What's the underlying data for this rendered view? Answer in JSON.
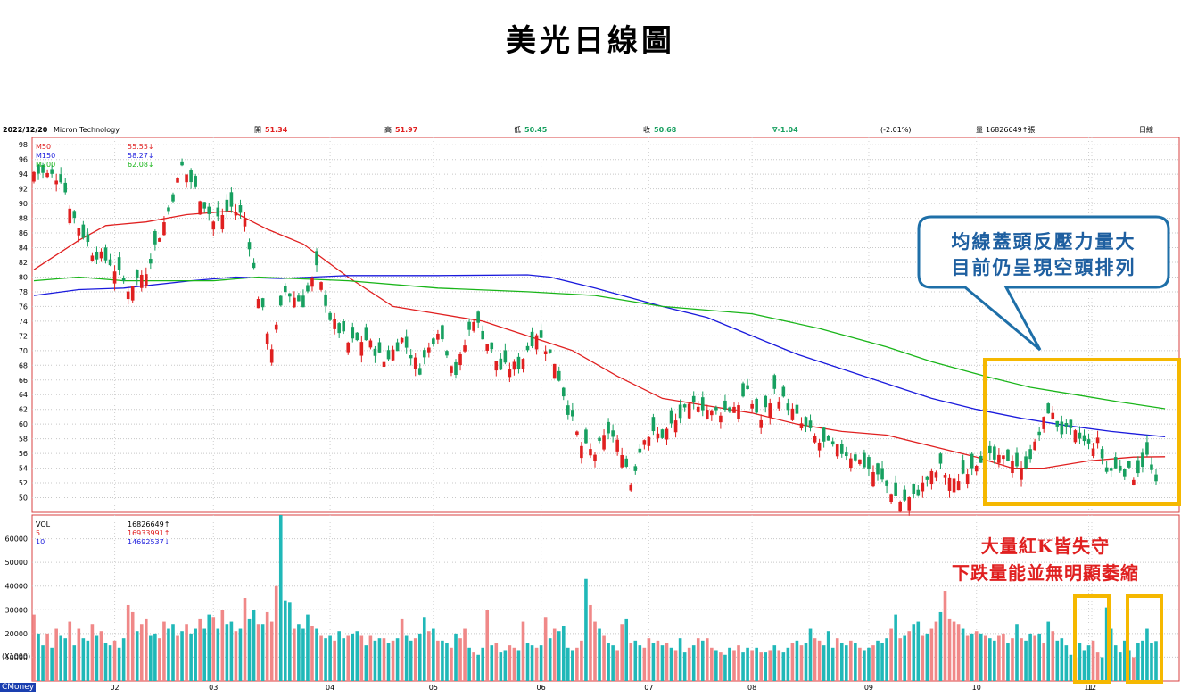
{
  "title": "美光日線圖",
  "header": {
    "date": "2022/12/20",
    "name": "Micron Technology",
    "open_label": "開",
    "open": "51.34",
    "high_label": "高",
    "high": "51.97",
    "low_label": "低",
    "low": "50.45",
    "close_label": "收",
    "close": "50.68",
    "change": "∇-1.04",
    "change_pct": "(-2.01%)",
    "vol_label": "量",
    "vol": "16826649↑張",
    "period": "日線"
  },
  "legend_price": [
    {
      "name": "M50",
      "value": "55.55↓",
      "color": "#e02020"
    },
    {
      "name": "M150",
      "value": "58.27↓",
      "color": "#1a1adc"
    },
    {
      "name": "M200",
      "value": "62.08↓",
      "color": "#19b519"
    }
  ],
  "legend_volume": [
    {
      "name": "VOL",
      "value": "16826649↑",
      "color": "#000000"
    },
    {
      "name": "5",
      "value": "16933991↑",
      "color": "#e02020"
    },
    {
      "name": "10",
      "value": "14692537↓",
      "color": "#1a1adc"
    }
  ],
  "annotations": {
    "callout_line1": "均線蓋頭反壓力量大",
    "callout_line2": "目前仍呈現空頭排列",
    "volume_note_line1": "大量紅K皆失守",
    "volume_note_line2": "下跌量能並無明顯萎縮"
  },
  "watermark": "CMoney",
  "volume_unit": "(X1000)",
  "colors": {
    "up": "#e02020",
    "down": "#18a060",
    "vol_up": "#f08888",
    "vol_down": "#20b8b8",
    "highlight": "#f5b800",
    "callout_border": "#1e6fa8",
    "callout_text": "#1e5fa0",
    "note_text": "#e02020"
  },
  "chart_data": [
    {
      "type": "candlestick",
      "title": "",
      "x_tick_labels": [
        "02",
        "03",
        "04",
        "05",
        "06",
        "07",
        "08",
        "09",
        "10",
        "11",
        "12"
      ],
      "ylim": [
        48,
        99
      ],
      "y_ticks": [
        50,
        52,
        54,
        56,
        58,
        60,
        62,
        64,
        66,
        68,
        70,
        72,
        74,
        76,
        78,
        80,
        82,
        84,
        86,
        88,
        90,
        92,
        94,
        96,
        98
      ],
      "close_path": [
        [
          0,
          94.3
        ],
        [
          6,
          93.5
        ],
        [
          9,
          88.0
        ],
        [
          13,
          83.5
        ],
        [
          17,
          82.0
        ],
        [
          21,
          78.5
        ],
        [
          25,
          81.0
        ],
        [
          30,
          89.0
        ],
        [
          33,
          95.0
        ],
        [
          37,
          91.0
        ],
        [
          40,
          87.5
        ],
        [
          44,
          89.5
        ],
        [
          47,
          88.0
        ],
        [
          50,
          77.5
        ],
        [
          53,
          70.5
        ],
        [
          56,
          78.0
        ],
        [
          60,
          76.5
        ],
        [
          63,
          81.0
        ],
        [
          66,
          74.5
        ],
        [
          70,
          71.0
        ],
        [
          74,
          71.5
        ],
        [
          78,
          68.5
        ],
        [
          82,
          71.5
        ],
        [
          86,
          67.5
        ],
        [
          90,
          73.0
        ],
        [
          94,
          67.0
        ],
        [
          98,
          74.5
        ],
        [
          101,
          71.0
        ],
        [
          104,
          67.5
        ],
        [
          108,
          68.0
        ],
        [
          112,
          72.5
        ],
        [
          116,
          68.5
        ],
        [
          119,
          62.0
        ],
        [
          122,
          57.0
        ],
        [
          125,
          56.0
        ],
        [
          128,
          59.0
        ],
        [
          131,
          56.5
        ],
        [
          133,
          52.0
        ],
        [
          136,
          58.5
        ],
        [
          140,
          58.5
        ],
        [
          144,
          61.0
        ],
        [
          148,
          63.0
        ],
        [
          151,
          61.5
        ],
        [
          155,
          62.0
        ],
        [
          159,
          64.0
        ],
        [
          162,
          60.5
        ],
        [
          165,
          64.5
        ],
        [
          168,
          62.5
        ],
        [
          171,
          60.0
        ],
        [
          175,
          57.5
        ],
        [
          179,
          56.5
        ],
        [
          183,
          55.5
        ],
        [
          187,
          53.5
        ],
        [
          190,
          51.5
        ],
        [
          193,
          49.5
        ],
        [
          196,
          50.0
        ],
        [
          199,
          52.5
        ],
        [
          202,
          54.0
        ],
        [
          205,
          52.0
        ],
        [
          208,
          54.0
        ],
        [
          211,
          55.5
        ],
        [
          215,
          55.0
        ],
        [
          218,
          55.5
        ],
        [
          220,
          53.5
        ],
        [
          223,
          57.0
        ],
        [
          226,
          62.0
        ],
        [
          229,
          59.0
        ],
        [
          232,
          58.5
        ],
        [
          235,
          57.0
        ],
        [
          237,
          57.5
        ],
        [
          239,
          53.5
        ],
        [
          242,
          54.0
        ],
        [
          245,
          53.0
        ],
        [
          248,
          55.5
        ],
        [
          250,
          51.5
        ],
        [
          252,
          50.68
        ]
      ],
      "series": [
        {
          "name": "M50",
          "points": [
            [
              0,
              81.0
            ],
            [
              10,
              85.0
            ],
            [
              16,
              87.0
            ],
            [
              25,
              87.5
            ],
            [
              34,
              88.5
            ],
            [
              44,
              89.0
            ],
            [
              52,
              86.5
            ],
            [
              60,
              84.5
            ],
            [
              70,
              80.0
            ],
            [
              80,
              76.0
            ],
            [
              90,
              75.0
            ],
            [
              100,
              74.0
            ],
            [
              110,
              72.0
            ],
            [
              120,
              70.0
            ],
            [
              130,
              66.5
            ],
            [
              140,
              63.5
            ],
            [
              150,
              62.5
            ],
            [
              160,
              61.5
            ],
            [
              170,
              60.0
            ],
            [
              180,
              59.0
            ],
            [
              190,
              58.5
            ],
            [
              200,
              57.0
            ],
            [
              210,
              55.5
            ],
            [
              218,
              54.0
            ],
            [
              225,
              54.0
            ],
            [
              235,
              55.0
            ],
            [
              245,
              55.5
            ],
            [
              252,
              55.55
            ]
          ]
        },
        {
          "name": "M150",
          "points": [
            [
              0,
              77.5
            ],
            [
              10,
              78.3
            ],
            [
              20,
              78.5
            ],
            [
              35,
              79.5
            ],
            [
              45,
              80.0
            ],
            [
              55,
              79.8
            ],
            [
              70,
              80.2
            ],
            [
              90,
              80.2
            ],
            [
              110,
              80.3
            ],
            [
              115,
              80.0
            ],
            [
              125,
              78.5
            ],
            [
              140,
              76.0
            ],
            [
              150,
              74.5
            ],
            [
              160,
              72.0
            ],
            [
              170,
              69.5
            ],
            [
              180,
              67.5
            ],
            [
              190,
              65.5
            ],
            [
              200,
              63.5
            ],
            [
              210,
              62.0
            ],
            [
              220,
              60.8
            ],
            [
              230,
              59.8
            ],
            [
              240,
              59.0
            ],
            [
              252,
              58.27
            ]
          ]
        },
        {
          "name": "M200",
          "points": [
            [
              0,
              79.5
            ],
            [
              10,
              80.0
            ],
            [
              20,
              79.5
            ],
            [
              40,
              79.5
            ],
            [
              50,
              80.0
            ],
            [
              70,
              79.5
            ],
            [
              90,
              78.5
            ],
            [
              110,
              78.0
            ],
            [
              125,
              77.5
            ],
            [
              140,
              76.0
            ],
            [
              160,
              75.0
            ],
            [
              175,
              73.0
            ],
            [
              190,
              70.5
            ],
            [
              200,
              68.5
            ],
            [
              212,
              66.5
            ],
            [
              222,
              65.0
            ],
            [
              232,
              64.0
            ],
            [
              242,
              63.0
            ],
            [
              252,
              62.08
            ]
          ]
        }
      ]
    },
    {
      "type": "bar",
      "title": "",
      "ylabel": "(X1000)",
      "ylim": [
        0,
        70000
      ],
      "y_ticks": [
        10000,
        20000,
        30000,
        40000,
        50000,
        60000
      ],
      "values_x1000": [
        28000,
        20000,
        15000,
        20000,
        14000,
        22000,
        19000,
        18000,
        25000,
        15000,
        22000,
        18000,
        17000,
        24000,
        19000,
        21000,
        16000,
        15000,
        17000,
        14000,
        18000,
        32000,
        29000,
        21000,
        24000,
        26000,
        19000,
        20000,
        18000,
        25000,
        22000,
        24000,
        19000,
        21000,
        24000,
        20000,
        22000,
        26000,
        22000,
        28000,
        27000,
        22000,
        30000,
        24000,
        25000,
        21000,
        22000,
        35000,
        26000,
        30000,
        24000,
        24000,
        29000,
        25000,
        40000,
        70000,
        34000,
        33000,
        22000,
        24000,
        22000,
        28000,
        23000,
        22000,
        19000,
        18000,
        19000,
        17000,
        21000,
        18000,
        19000,
        20000,
        21000,
        19000,
        15000,
        19000,
        17000,
        18000,
        18000,
        16000,
        17000,
        18000,
        26000,
        19000,
        17000,
        18000,
        20000,
        27000,
        21000,
        22000,
        17000,
        17000,
        16000,
        14000,
        20000,
        18000,
        22000,
        14000,
        12000,
        11000,
        14000,
        30000,
        15000,
        16000,
        12000,
        13000,
        15000,
        14000,
        13000,
        25000,
        16000,
        15000,
        14000,
        15000,
        27000,
        18000,
        22000,
        21000,
        23000,
        14000,
        13000,
        14000,
        17000,
        43000,
        32000,
        25000,
        22000,
        19000,
        16000,
        15000,
        13000,
        24000,
        26000,
        16000,
        17000,
        15000,
        14000,
        18000,
        16000,
        17000,
        15000,
        16000,
        14000,
        13000,
        18000,
        12000,
        14000,
        15000,
        18000,
        17000,
        18000,
        14000,
        13000,
        12000,
        11000,
        14000,
        13000,
        15000,
        12000,
        14000,
        13000,
        14000,
        12000,
        12000,
        13000,
        15000,
        13000,
        12000,
        14000,
        16000,
        17000,
        15000,
        16000,
        22000,
        18000,
        17000,
        15000,
        21000,
        14000,
        18000,
        16000,
        15000,
        17000,
        16000,
        14000,
        13000,
        14000,
        15000,
        17000,
        16000,
        18000,
        22000,
        28000,
        18000,
        19000,
        21000,
        24000,
        25000,
        19000,
        20000,
        22000,
        25000,
        29000,
        38000,
        26000,
        25000,
        24000,
        22000,
        19000,
        20000,
        21000,
        20000,
        19000,
        18000,
        17000,
        19000,
        20000,
        16000,
        18000,
        24000,
        18000,
        17000,
        20000,
        19000,
        20000,
        16000,
        25000,
        21000,
        17000,
        18000,
        15000,
        11000,
        10000,
        16000,
        13000,
        15000,
        17000,
        12000,
        10000,
        31000,
        22000,
        15000,
        12000,
        17000,
        13000,
        10000,
        16000,
        17000,
        22000,
        16000,
        16827
      ],
      "colors_up": [
        1,
        0,
        0,
        1,
        0,
        1,
        0,
        0,
        1,
        0,
        1,
        0,
        0,
        1,
        0,
        1,
        0,
        0,
        1,
        0,
        0,
        1,
        1,
        0,
        1,
        1,
        0,
        0,
        1,
        1,
        0,
        0,
        1,
        0,
        1,
        0,
        0,
        1,
        0,
        0,
        1,
        0,
        1,
        0,
        0,
        1,
        0,
        1,
        0,
        0,
        1,
        0,
        1,
        1,
        1,
        0,
        0,
        0,
        1,
        0,
        0,
        0,
        1,
        0,
        1,
        0,
        0,
        1,
        0,
        0,
        1,
        0,
        0,
        1,
        0,
        1,
        0,
        0,
        1,
        0,
        1,
        0,
        1,
        0,
        0,
        1,
        0,
        0,
        1,
        0,
        1,
        0,
        0,
        1,
        0,
        1,
        1,
        0,
        1,
        0,
        0,
        1,
        0,
        1,
        0,
        0,
        1,
        1,
        0,
        1,
        0,
        0,
        1,
        0,
        1,
        0,
        1,
        0,
        0,
        0,
        0,
        1,
        1,
        0,
        1,
        1,
        0,
        1,
        0,
        0,
        1,
        1,
        0,
        1,
        0,
        0,
        1,
        1,
        0,
        1,
        0,
        1,
        0,
        1,
        0,
        0,
        1,
        0,
        1,
        0,
        1,
        1,
        0,
        1,
        0,
        0,
        1,
        1,
        0,
        0,
        1,
        0,
        1,
        0,
        1,
        0,
        1,
        0,
        0,
        1,
        0,
        1,
        0,
        0,
        1,
        1,
        0,
        0,
        0,
        1,
        0,
        0,
        1,
        0,
        1,
        0,
        0,
        1,
        0,
        0,
        0,
        1,
        0,
        1,
        0,
        1,
        0,
        0,
        1,
        0,
        1,
        1,
        0,
        1,
        1,
        1,
        1,
        0,
        1,
        0,
        1,
        0,
        1,
        0,
        0,
        1,
        1,
        0,
        1,
        0,
        1,
        0,
        0,
        1,
        0,
        1,
        0,
        1,
        0,
        0,
        0,
        0,
        1,
        0,
        0,
        0,
        1,
        1,
        0,
        0,
        0,
        0,
        0,
        0,
        0,
        1,
        0,
        0
      ]
    }
  ]
}
